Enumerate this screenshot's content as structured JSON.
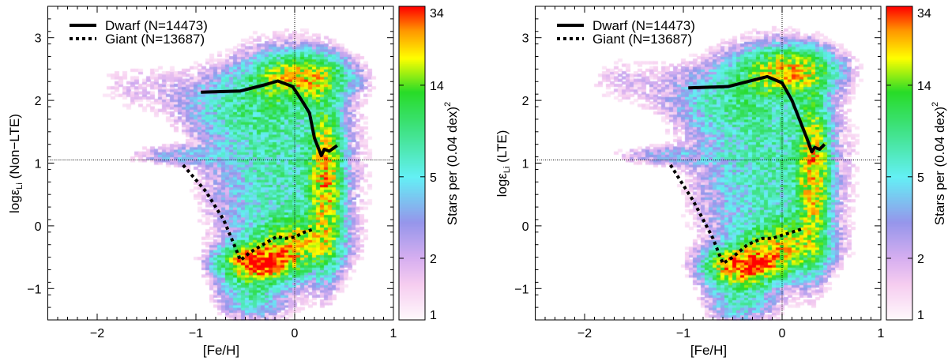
{
  "chart_data": [
    {
      "type": "heatmap",
      "title": "",
      "xlabel": "[Fe/H]",
      "ylabel_main": "logε",
      "ylabel_sub": "Li",
      "ylabel_suffix": " (Non−LTE)",
      "xlim": [
        -2.5,
        1.0
      ],
      "ylim": [
        -1.5,
        3.5
      ],
      "xticks": [
        -2,
        -1,
        0,
        1
      ],
      "xtick_labels": [
        "−2",
        "−1",
        "0",
        "1"
      ],
      "yticks": [
        -1,
        0,
        1,
        2,
        3
      ],
      "ytick_labels": [
        "−1",
        "0",
        "1",
        "2",
        "3"
      ],
      "reference_lines": {
        "x": 0,
        "y": 1.05
      },
      "colorbar": {
        "label": "Stars per (0.04 dex)",
        "label_sup": "2",
        "ticks": [
          1,
          2,
          5,
          14,
          34
        ],
        "tick_labels": [
          "1",
          "2",
          "5",
          "14",
          "34"
        ],
        "scale": "log"
      },
      "legend": {
        "placement": "top-left",
        "entries": [
          "Dwarf (N=14473)",
          "Giant  (N=13687)"
        ]
      },
      "series": [
        {
          "name": "Dwarf (N=14473)",
          "style": "solid",
          "x": [
            -0.95,
            -0.55,
            -0.3,
            -0.17,
            -0.02,
            0.08,
            0.15,
            0.2,
            0.27,
            0.3,
            0.35,
            0.43
          ],
          "y": [
            2.13,
            2.15,
            2.25,
            2.31,
            2.22,
            1.98,
            1.8,
            1.4,
            1.12,
            1.22,
            1.19,
            1.28
          ]
        },
        {
          "name": "Giant (N=13687)",
          "style": "dotted",
          "x": [
            -1.13,
            -0.9,
            -0.72,
            -0.6,
            -0.55,
            -0.45,
            -0.3,
            -0.18,
            -0.1,
            0.0,
            0.1,
            0.2
          ],
          "y": [
            0.97,
            0.55,
            0.1,
            -0.35,
            -0.55,
            -0.42,
            -0.28,
            -0.17,
            -0.2,
            -0.18,
            -0.1,
            -0.05
          ]
        }
      ],
      "density_components": [
        [
          0.05,
          2.35,
          0.28,
          0.22,
          20
        ],
        [
          0.3,
          0.7,
          0.1,
          0.75,
          20
        ],
        [
          -0.38,
          -0.6,
          0.22,
          0.17,
          32
        ],
        [
          0.0,
          -0.3,
          0.25,
          0.25,
          16
        ],
        [
          -0.15,
          0.9,
          0.45,
          1.1,
          7
        ],
        [
          -0.55,
          1.9,
          0.4,
          0.35,
          5
        ],
        [
          -1.2,
          1.1,
          0.35,
          0.1,
          3
        ],
        [
          -1.6,
          2.2,
          0.35,
          0.3,
          1.5
        ],
        [
          -0.45,
          -1.1,
          0.2,
          0.25,
          6
        ]
      ]
    },
    {
      "type": "heatmap",
      "title": "",
      "xlabel": "[Fe/H]",
      "ylabel_main": "logε",
      "ylabel_sub": "Li",
      "ylabel_suffix": " (LTE)",
      "xlim": [
        -2.5,
        1.0
      ],
      "ylim": [
        -1.5,
        3.5
      ],
      "xticks": [
        -2,
        -1,
        0,
        1
      ],
      "xtick_labels": [
        "−2",
        "−1",
        "0",
        "1"
      ],
      "yticks": [
        -1,
        0,
        1,
        2,
        3
      ],
      "ytick_labels": [
        "−1",
        "0",
        "1",
        "2",
        "3"
      ],
      "reference_lines": {
        "x": 0,
        "y": 1.05
      },
      "colorbar": {
        "label": "Stars per (0.04 dex)",
        "label_sup": "2",
        "ticks": [
          1,
          2,
          5,
          14,
          34
        ],
        "tick_labels": [
          "1",
          "2",
          "5",
          "14",
          "34"
        ],
        "scale": "log"
      },
      "legend": {
        "placement": "top-left",
        "entries": [
          "Dwarf (N=14473)",
          "Giant  (N=13687)"
        ]
      },
      "series": [
        {
          "name": "Dwarf (N=14473)",
          "style": "solid",
          "x": [
            -0.95,
            -0.55,
            -0.15,
            0.0,
            0.1,
            0.2,
            0.25,
            0.3,
            0.33,
            0.38,
            0.43
          ],
          "y": [
            2.2,
            2.22,
            2.38,
            2.28,
            2.0,
            1.6,
            1.4,
            1.18,
            1.25,
            1.22,
            1.3
          ]
        },
        {
          "name": "Giant (N=13687)",
          "style": "dotted",
          "x": [
            -1.13,
            -0.9,
            -0.7,
            -0.6,
            -0.5,
            -0.35,
            -0.2,
            -0.1,
            0.0,
            0.1,
            0.2
          ],
          "y": [
            0.97,
            0.4,
            -0.2,
            -0.6,
            -0.5,
            -0.3,
            -0.2,
            -0.2,
            -0.15,
            -0.1,
            -0.05
          ]
        }
      ],
      "density_components": [
        [
          0.05,
          2.45,
          0.28,
          0.22,
          20
        ],
        [
          0.3,
          0.8,
          0.1,
          0.75,
          20
        ],
        [
          -0.4,
          -0.65,
          0.22,
          0.17,
          32
        ],
        [
          0.0,
          -0.35,
          0.25,
          0.25,
          16
        ],
        [
          -0.15,
          0.9,
          0.45,
          1.1,
          7
        ],
        [
          -0.55,
          2.0,
          0.4,
          0.35,
          5
        ],
        [
          -1.2,
          1.1,
          0.35,
          0.1,
          3
        ],
        [
          -1.6,
          2.3,
          0.35,
          0.3,
          1.5
        ],
        [
          -0.45,
          -1.15,
          0.2,
          0.25,
          6
        ]
      ]
    }
  ]
}
